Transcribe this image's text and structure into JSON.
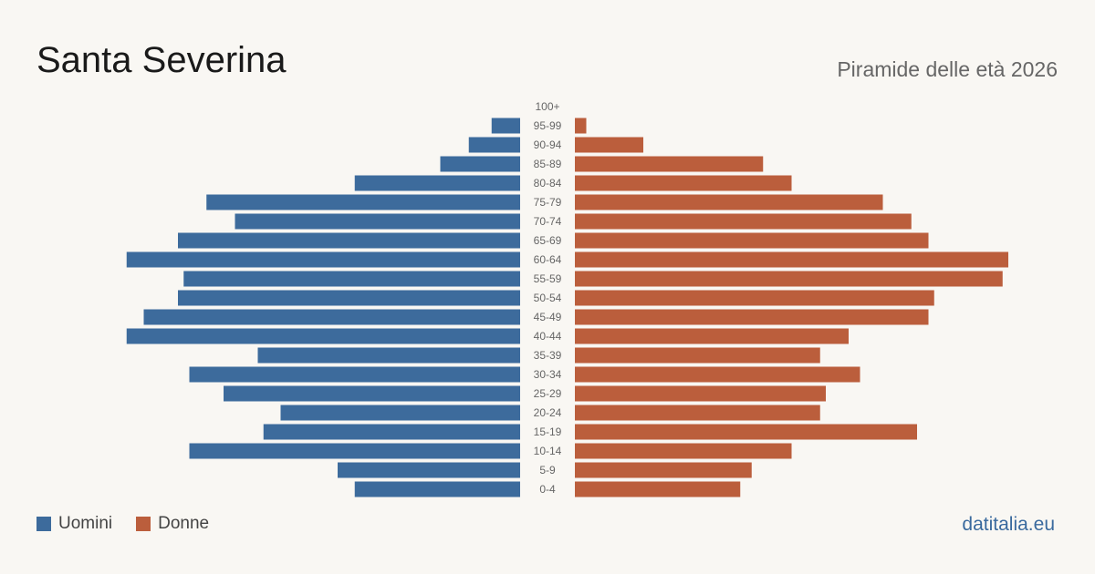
{
  "header": {
    "title": "Santa Severina",
    "subtitle": "Piramide delle età 2026"
  },
  "footer": {
    "source": "datitalia.eu"
  },
  "colors": {
    "men": "#3d6b9c",
    "women": "#bb5e3c",
    "background": "#f9f7f3",
    "tick_text": "#666666"
  },
  "chart_data": {
    "type": "bar",
    "orientation": "horizontal-pyramid",
    "title": "Piramide delle età 2026",
    "categories": [
      "100+",
      "95-99",
      "90-94",
      "85-89",
      "80-84",
      "75-79",
      "70-74",
      "65-69",
      "60-64",
      "55-59",
      "50-54",
      "45-49",
      "40-44",
      "35-39",
      "30-34",
      "25-29",
      "20-24",
      "15-19",
      "10-14",
      "5-9",
      "0-4"
    ],
    "series": [
      {
        "name": "Uomini",
        "values": [
          0,
          5,
          9,
          14,
          29,
          55,
          50,
          60,
          69,
          59,
          60,
          66,
          69,
          46,
          58,
          52,
          42,
          45,
          58,
          32,
          29
        ]
      },
      {
        "name": "Donne",
        "values": [
          0,
          2,
          12,
          33,
          38,
          54,
          59,
          62,
          76,
          75,
          63,
          62,
          48,
          43,
          50,
          44,
          43,
          60,
          38,
          31,
          29
        ]
      }
    ],
    "xlim": [
      0,
      80
    ],
    "legend": "bottom-left",
    "grid": false
  }
}
